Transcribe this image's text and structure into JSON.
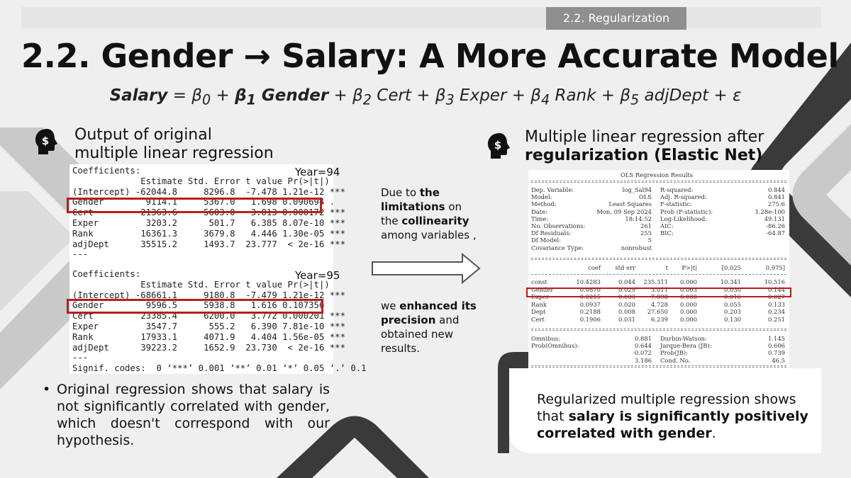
{
  "header": {
    "section_tag": "2.2. Regularization",
    "title": "2.2. Gender → Salary: A More Accurate Model"
  },
  "equation": {
    "lhs": "Salary",
    "eq": " = ",
    "b0": "β",
    "b0_sub": "0",
    "plus1": " + ",
    "b1_term": "β",
    "b1_sub": "1",
    "gender": " Gender",
    "rest1": " + β",
    "b2_sub": "2",
    "cert": " Cert + β",
    "b3_sub": "3",
    "exper": " Exper + β",
    "b4_sub": "4",
    "rank": " Rank + β",
    "b5_sub": "5",
    "tail": " adjDept + ε"
  },
  "left": {
    "heading_line1": "Output of original",
    "heading_line2": "multiple linear regression",
    "year94": "Year=94",
    "year95": "Year=95",
    "output94": "Coefficients:\n             Estimate Std. Error t value Pr(>|t|)\n(Intercept) -62044.8     8296.8  -7.478 1.21e-12 ***\nGender        9114.1     5367.0   1.698 0.090694 .\nCert         21363.6     5603.0   3.813 0.000172 ***\nExper         3203.2      501.7   6.385 8.07e-10 ***\nRank         16361.3     3679.8   4.446 1.30e-05 ***\nadjDept      35515.2     1493.7  23.777  < 2e-16 ***\n---",
    "output95": "Coefficients:\n             Estimate Std. Error t value Pr(>|t|)\n(Intercept) -68661.1     9180.8  -7.479 1.21e-12 ***\nGender        9596.5     5938.8   1.616 0.107356\nCert         23385.4     6200.0   3.772 0.000201 ***\nExper         3547.7      555.2   6.390 7.81e-10 ***\nRank         17933.1     4071.9   4.404 1.56e-05 ***\nadjDept      39223.2     1652.9  23.730  < 2e-16 ***\n---\nSignif. codes:  0 ‘***’ 0.001 ‘**’ 0.01 ‘*’ 0.05 ‘.’ 0.1",
    "bullet": "Original regression shows that salary is not significantly correlated with gender, which doesn't correspond with our hypothesis."
  },
  "middle": {
    "t1_pre": "Due to ",
    "t1_b1": "the limitations",
    "t1_mid": " on the ",
    "t1_b2": "collinearity",
    "t1_post": " among variables ,",
    "t2_pre": "we ",
    "t2_b": "enhanced its precision",
    "t2_post": " and obtained new results."
  },
  "right": {
    "heading_line1": "Multiple linear regression after",
    "heading_line2": "regularization (Elastic Net)",
    "ols_title": "OLS Regression Results",
    "ols_left_labels": [
      "Dep. Variable:",
      "Model:",
      "Method:",
      "Date:",
      "Time:",
      "No. Observations:",
      "Df Residuals:",
      "Df Model:",
      "Covariance Type:"
    ],
    "ols_left_values": [
      "log_Sal94",
      "OLS",
      "Least Squares",
      "Mon, 09 Sep 2024",
      "18:14:52",
      "261",
      "255",
      "5",
      "nonrobust"
    ],
    "ols_right_labels": [
      "R-squared:",
      "Adj. R-squared:",
      "F-statistic:",
      "Prob (F-statistic):",
      "Log-Likelihood:",
      "AIC:",
      "BIC:"
    ],
    "ols_right_values": [
      "0.844",
      "0.841",
      "275.6",
      "1.28e-100",
      "49.131",
      "-86.26",
      "-64.87"
    ],
    "coef_headers": [
      "coef",
      "std err",
      "t",
      "P>|t|",
      "[0.025",
      "0.975]"
    ],
    "coef_rows": [
      [
        "const",
        "10.4283",
        "0.044",
        "235.311",
        "0.000",
        "10.341",
        "10.516"
      ],
      [
        "Gender",
        "0.0870",
        "0.029",
        "3.011",
        "0.003",
        "0.030",
        "0.144"
      ],
      [
        "Exper",
        "0.0215",
        "0.003",
        "7.898",
        "0.000",
        "0.016",
        "0.027"
      ],
      [
        "Rank",
        "0.0937",
        "0.020",
        "4.728",
        "0.000",
        "0.055",
        "0.133"
      ],
      [
        "Dept",
        "0.2188",
        "0.008",
        "27.650",
        "0.000",
        "0.203",
        "0.234"
      ],
      [
        "Cert",
        "0.1906",
        "0.031",
        "6.239",
        "0.000",
        "0.130",
        "0.251"
      ]
    ],
    "diag_left_labels": [
      "Omnibus:",
      "Prob(Omnibus):",
      "",
      ""
    ],
    "diag_left_values": [
      "0.881",
      "0.644",
      "-0.072",
      "3.186"
    ],
    "diag_right_labels": [
      "Durbin-Watson:",
      "Jarque-Bera (JB):",
      "Prob(JB):",
      "Cond. No."
    ],
    "diag_right_values": [
      "1.145",
      "0.606",
      "0.739",
      "46.5"
    ],
    "card_pre": "Regularized multiple regression shows that ",
    "card_b": "salary is significantly positively correlated with gender",
    "card_post": "."
  },
  "colors": {
    "background": "#efefef",
    "highlight_box": "#b81e1e",
    "decor_dark": "#3a3a3a",
    "decor_light": "#c8c8c8"
  },
  "icons": [
    "dollar-head-icon",
    "arrow-right-icon"
  ]
}
